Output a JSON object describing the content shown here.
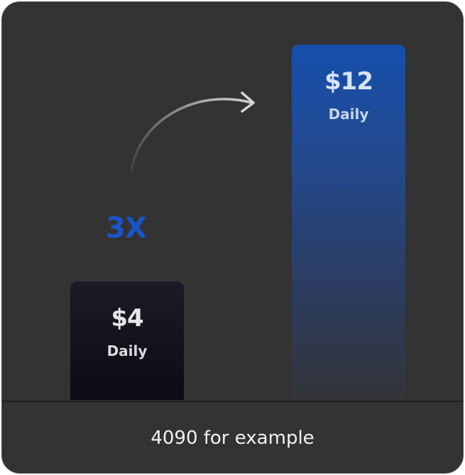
{
  "chart_data": {
    "type": "bar",
    "categories": [
      "$4",
      "$12"
    ],
    "values": [
      4,
      12
    ],
    "value_labels": [
      "$4",
      "$12"
    ],
    "category_captions": [
      "Daily",
      "Daily"
    ],
    "ylim": [
      0,
      12.7
    ],
    "annotation": "3X",
    "footnote": "4090 for example",
    "colors": {
      "bar_small": "#12121c",
      "bar_large": "#1650ad",
      "multiplier": "#1a55c8",
      "background": "#333333"
    }
  }
}
